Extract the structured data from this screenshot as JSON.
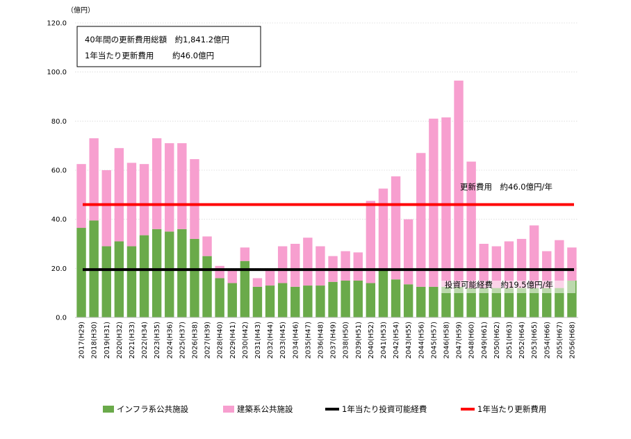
{
  "chart_data": {
    "type": "bar",
    "stacked": true,
    "y_unit_label": "（億円）",
    "ylim": [
      0,
      120
    ],
    "yticks": [
      "0.0",
      "20.0",
      "40.0",
      "60.0",
      "80.0",
      "100.0",
      "120.0"
    ],
    "grid": true,
    "categories": [
      "2017(H29)",
      "2018(H30)",
      "2019(H31)",
      "2020(H32)",
      "2021(H33)",
      "2022(H34)",
      "2023(H35)",
      "2024(H36)",
      "2025(H37)",
      "2026(H38)",
      "2027(H39)",
      "2028(H40)",
      "2029(H41)",
      "2030(H42)",
      "2031(H43)",
      "2032(H44)",
      "2033(H45)",
      "2034(H46)",
      "2035(H47)",
      "2036(H48)",
      "2037(H49)",
      "2038(H50)",
      "2039(H51)",
      "2040(H52)",
      "2041(H53)",
      "2042(H54)",
      "2043(H55)",
      "2044(H56)",
      "2045(H57)",
      "2046(H58)",
      "2047(H59)",
      "2048(H60)",
      "2049(H61)",
      "2050(H62)",
      "2051(H63)",
      "2052(H64)",
      "2053(H65)",
      "2054(H66)",
      "2055(H67)",
      "2056(H68)"
    ],
    "series": [
      {
        "name": "インフラ系公共施設",
        "color": "#6aaa4a",
        "values": [
          36.5,
          39.5,
          29,
          31,
          29,
          33.5,
          36,
          35,
          36,
          32,
          25,
          16,
          14,
          23,
          12.5,
          13,
          14,
          12.5,
          13,
          13,
          14.5,
          15,
          15,
          14,
          19.5,
          15.5,
          13.5,
          12.5,
          12.5,
          12.5,
          12.5,
          12,
          12,
          12,
          12,
          12,
          12,
          12,
          12,
          15
        ]
      },
      {
        "name": "建築系公共施設",
        "color": "#f79fcf",
        "values": [
          26,
          33.5,
          31,
          38,
          34,
          29,
          37,
          36,
          35,
          32.5,
          8,
          5,
          5.5,
          5.5,
          3.5,
          6,
          15,
          17.5,
          19.5,
          16,
          10.5,
          12,
          11.5,
          33.5,
          33,
          42,
          26.5,
          54.5,
          68.5,
          69,
          84,
          51.5,
          18,
          17,
          19,
          20,
          25.5,
          15,
          19.5,
          13.5
        ]
      }
    ],
    "lines": [
      {
        "name": "1年当たり投資可能経費",
        "value": 19.5,
        "color": "#000000",
        "label": "投資可能経費　約19.5億円/年"
      },
      {
        "name": "1年当たり更新費用",
        "value": 46.0,
        "color": "#ff0000",
        "label": "更新費用　約46.0億円/年"
      }
    ],
    "annotation_box": [
      "40年間の更新費用総額　約1,841.2億円",
      "1年当たり更新費用　　 約46.0億円"
    ],
    "legend_position": "bottom"
  }
}
